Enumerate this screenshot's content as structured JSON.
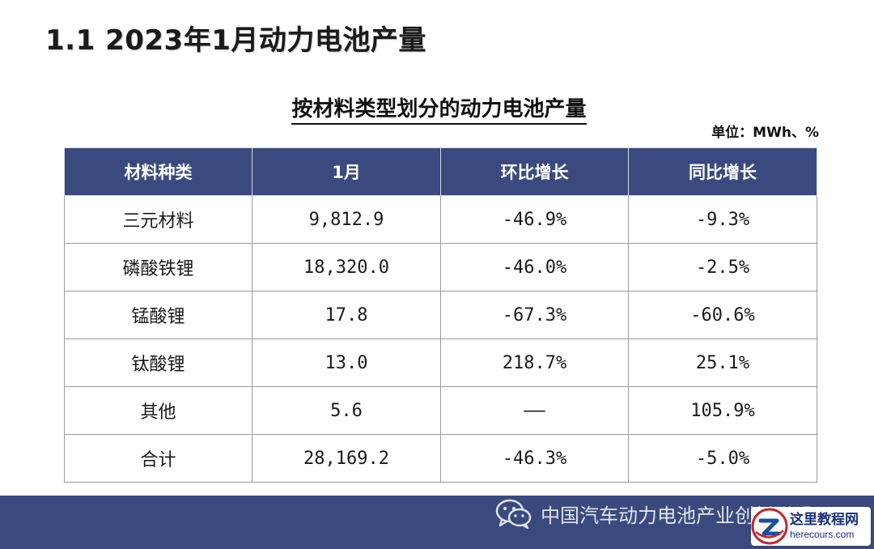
{
  "page": {
    "title": "1.1 2023年1月动力电池产量"
  },
  "table": {
    "title": "按材料类型划分的动力电池产量",
    "unit": "单位：MWh、%",
    "headers": [
      "材料种类",
      "1月",
      "环比增长",
      "同比增长"
    ],
    "rows": [
      [
        "三元材料",
        "9,812.9",
        "-46.9%",
        "-9.3%"
      ],
      [
        "磷酸铁锂",
        "18,320.0",
        "-46.0%",
        "-2.5%"
      ],
      [
        "锰酸锂",
        "17.8",
        "-67.3%",
        "-60.6%"
      ],
      [
        "钛酸锂",
        "13.0",
        "218.7%",
        "25.1%"
      ],
      [
        "其他",
        "5.6",
        "——",
        "105.9%"
      ],
      [
        "合计",
        "28,169.2",
        "-46.3%",
        "-5.0%"
      ]
    ]
  },
  "footer": {
    "brand": "中国汽车动力电池产业创新联盟",
    "icon": "wechat-icon"
  },
  "watermark": {
    "text_cn": "这里教程网",
    "text_en": "herecours.com"
  },
  "colors": {
    "header_bg": "#3b4a7e",
    "footer_bg": "#3b4a7e"
  }
}
